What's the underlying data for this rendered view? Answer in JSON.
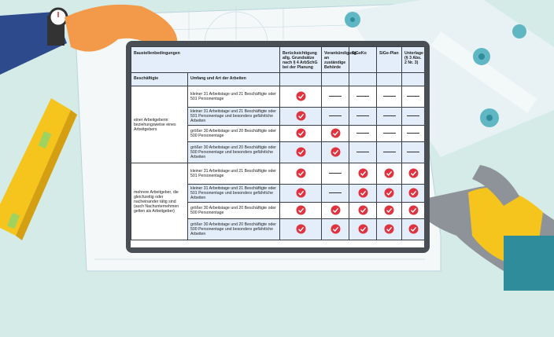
{
  "table": {
    "header": [
      "Baustellenbedingungen",
      "Berücksichtigung allg. Grundsätze nach § 4 ArbSchG bei der Planung",
      "Vorankündigung an zuständige Behörde",
      "SiGeKo",
      "SiGe-Plan",
      "Unterlage (§ 3 Abs. 2 Nr. 3)"
    ],
    "subheader": [
      "Beschäftigte",
      "Umfang und Art der Arbeiten"
    ],
    "groups": [
      {
        "label": "einer Arbeitgeberin beziehungsweise eines Arbeitgebers",
        "rows": [
          {
            "text": "kleiner 31 Arbeitstage und 21 Beschäftigte oder 501 Personentage",
            "cells": [
              true,
              false,
              false,
              false,
              false
            ]
          },
          {
            "text": "kleiner 31 Arbeitstage und 21 Beschäftigte oder 501 Personentage und besonders gefährliche Arbeiten",
            "cells": [
              true,
              false,
              false,
              false,
              false
            ]
          },
          {
            "text": "größer 30 Arbeitstage und 20 Beschäftigte oder 500 Personentage",
            "cells": [
              true,
              true,
              false,
              false,
              false
            ]
          },
          {
            "text": "größer 30 Arbeitstage und 20 Beschäftigte oder 500 Personentage und besonders gefährliche Arbeiten",
            "cells": [
              true,
              true,
              false,
              false,
              false
            ]
          }
        ]
      },
      {
        "label": "mehrere Arbeitgeber, die gleichzeitig oder nacheinander tätig sind (auch Nachunternehmen gelten als Arbeitgeber)",
        "rows": [
          {
            "text": "kleiner 31 Arbeitstage und 21 Beschäftigte oder 501 Personentage",
            "cells": [
              true,
              false,
              true,
              true,
              true
            ]
          },
          {
            "text": "kleiner 31 Arbeitstage und 21 Beschäftigte oder 501 Personentage und besonders gefährliche Arbeiten",
            "cells": [
              true,
              false,
              true,
              true,
              true
            ]
          },
          {
            "text": "größer 30 Arbeitstage und 20 Beschäftigte oder 500 Personentage",
            "cells": [
              true,
              true,
              true,
              true,
              true
            ]
          },
          {
            "text": "größer 30 Arbeitstage und 20 Beschäftigte oder 500 Personentage und besonders gefährliche Arbeiten",
            "cells": [
              true,
              true,
              true,
              true,
              true
            ]
          }
        ]
      }
    ]
  }
}
